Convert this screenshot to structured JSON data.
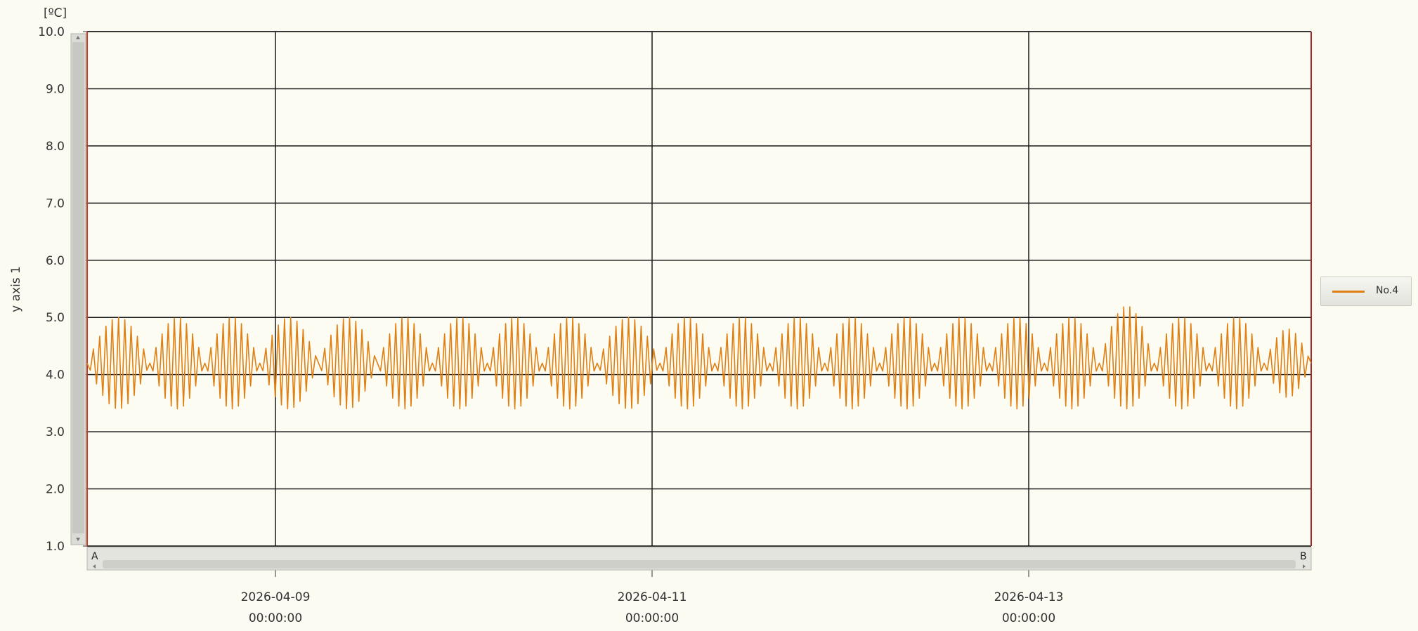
{
  "chart_data": {
    "type": "line",
    "unit_label": "[ºC]",
    "ylabel": "y axis 1",
    "ylim": [
      1.0,
      10.0
    ],
    "y_ticks": [
      "1.0",
      "2.0",
      "3.0",
      "4.0",
      "5.0",
      "6.0",
      "7.0",
      "8.0",
      "9.0",
      "10.0"
    ],
    "x_range": [
      "2026-04-08",
      "2026-04-14 12:00"
    ],
    "x_ticks": [
      {
        "x": "2026-04-09 00:00:00",
        "date": "2026-04-09",
        "time": "00:00:00"
      },
      {
        "x": "2026-04-11 00:00:00",
        "date": "2026-04-11",
        "time": "00:00:00"
      },
      {
        "x": "2026-04-13 00:00:00",
        "date": "2026-04-13",
        "time": "00:00:00"
      }
    ],
    "extra_vertical_grid": [
      "2026-04-14 12:00:00"
    ],
    "grid": true,
    "legend_position": "right",
    "scrollbar_labels": {
      "start": "A",
      "end": "B"
    },
    "series": [
      {
        "name": "No.4",
        "color": "#e07f12",
        "waveform": "oscillating around 4.2 with periodic amplitude envelopes",
        "baseline": 4.2,
        "min": 3.4,
        "max": 5.0,
        "peak_max": 5.2,
        "groups": [
          {
            "start": "2026-04-08 00:00",
            "end": "2026-04-08 08:00",
            "max": 5.0,
            "min": 3.4
          },
          {
            "start": "2026-04-08 08:00",
            "end": "2026-04-08 15:00",
            "max": 5.0,
            "min": 3.4
          },
          {
            "start": "2026-04-08 15:00",
            "end": "2026-04-08 22:00",
            "max": 5.0,
            "min": 3.4
          },
          {
            "start": "2026-04-08 22:00",
            "end": "2026-04-09 05:30",
            "max": 5.0,
            "min": 3.4
          },
          {
            "start": "2026-04-09 05:30",
            "end": "2026-04-09 13:00",
            "max": 5.0,
            "min": 3.4
          },
          {
            "start": "2026-04-09 13:00",
            "end": "2026-04-09 20:00",
            "max": 5.0,
            "min": 3.4
          },
          {
            "start": "2026-04-09 20:00",
            "end": "2026-04-10 03:00",
            "max": 5.0,
            "min": 3.4
          },
          {
            "start": "2026-04-10 03:00",
            "end": "2026-04-10 10:00",
            "max": 5.0,
            "min": 3.4
          },
          {
            "start": "2026-04-10 10:00",
            "end": "2026-04-10 17:00",
            "max": 5.0,
            "min": 3.4
          },
          {
            "start": "2026-04-10 17:00",
            "end": "2026-04-11 01:00",
            "max": 5.0,
            "min": 3.4
          },
          {
            "start": "2026-04-11 01:00",
            "end": "2026-04-11 08:00",
            "max": 5.0,
            "min": 3.4
          },
          {
            "start": "2026-04-11 08:00",
            "end": "2026-04-11 15:00",
            "max": 5.0,
            "min": 3.4
          },
          {
            "start": "2026-04-11 15:00",
            "end": "2026-04-11 22:00",
            "max": 5.0,
            "min": 3.4
          },
          {
            "start": "2026-04-11 22:00",
            "end": "2026-04-12 05:00",
            "max": 5.0,
            "min": 3.4
          },
          {
            "start": "2026-04-12 05:00",
            "end": "2026-04-12 12:00",
            "max": 5.0,
            "min": 3.4
          },
          {
            "start": "2026-04-12 12:00",
            "end": "2026-04-12 19:00",
            "max": 5.0,
            "min": 3.4
          },
          {
            "start": "2026-04-12 19:00",
            "end": "2026-04-13 02:00",
            "max": 5.0,
            "min": 3.4
          },
          {
            "start": "2026-04-13 02:00",
            "end": "2026-04-13 09:00",
            "max": 5.0,
            "min": 3.4
          },
          {
            "start": "2026-04-13 09:00",
            "end": "2026-04-13 16:00",
            "max": 5.2,
            "min": 3.4
          },
          {
            "start": "2026-04-13 16:00",
            "end": "2026-04-13 23:00",
            "max": 5.0,
            "min": 3.4
          },
          {
            "start": "2026-04-13 23:00",
            "end": "2026-04-14 06:00",
            "max": 5.0,
            "min": 3.4
          },
          {
            "start": "2026-04-14 06:00",
            "end": "2026-04-14 12:00",
            "max": 4.8,
            "min": 3.6
          }
        ]
      }
    ]
  }
}
